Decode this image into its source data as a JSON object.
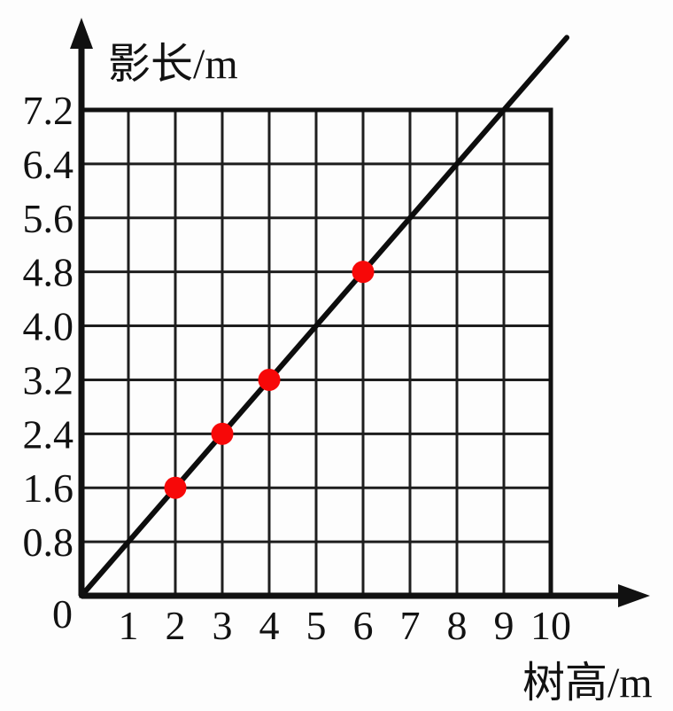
{
  "chart_data": {
    "type": "line",
    "title": "",
    "xlabel": "树高/m",
    "ylabel": "影长/m",
    "origin_label": "0",
    "xlim": [
      0,
      10
    ],
    "ylim": [
      0,
      7.2
    ],
    "x_ticks": [
      "1",
      "2",
      "3",
      "4",
      "5",
      "6",
      "7",
      "8",
      "9",
      "10"
    ],
    "y_ticks": [
      "0.8",
      "1.6",
      "2.4",
      "3.2",
      "4.0",
      "4.8",
      "5.6",
      "6.4",
      "7.2"
    ],
    "grid": true,
    "legend": "none",
    "line": {
      "slope": 0.8,
      "through_origin": true,
      "x_start": 0,
      "x_end": 10.34,
      "color": "#0d0d0d"
    },
    "points": [
      {
        "x": 2,
        "y": 1.6
      },
      {
        "x": 3,
        "y": 2.4
      },
      {
        "x": 4,
        "y": 3.2
      },
      {
        "x": 6,
        "y": 4.8
      }
    ],
    "point_color": "#f70808",
    "axis_color": "#111111",
    "grid_color": "#1e1e1e"
  }
}
